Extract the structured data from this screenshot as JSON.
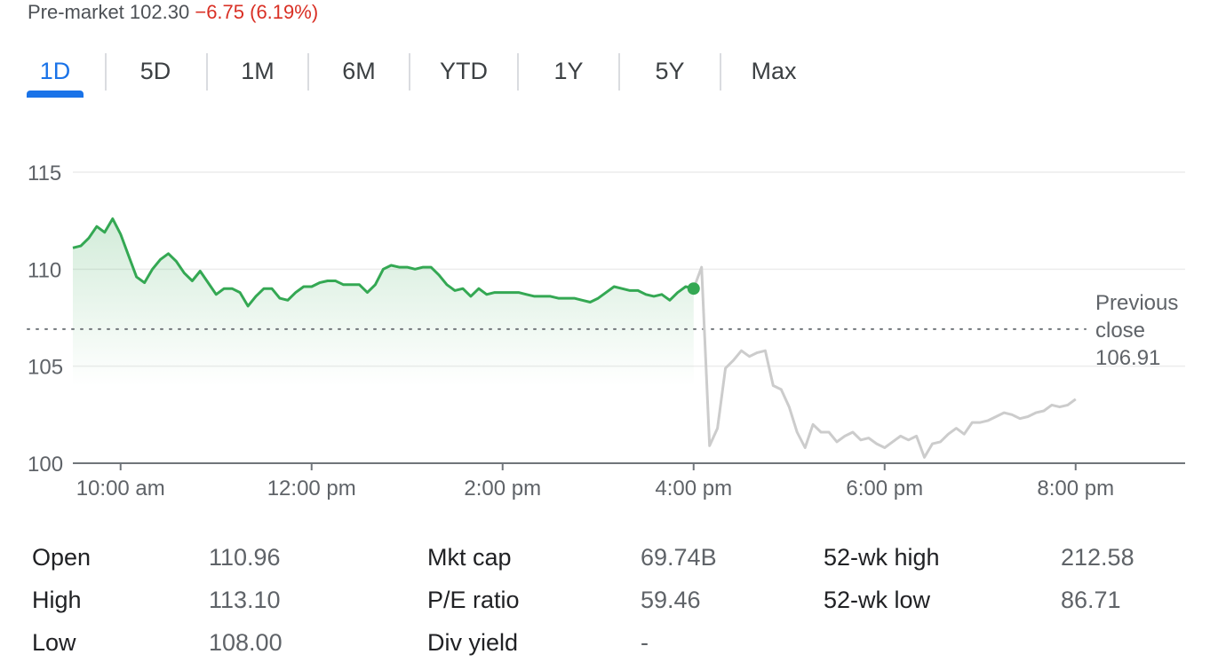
{
  "premarket": {
    "label": "Pre-market",
    "price": "102.30",
    "change": "−6.75 (6.19%)"
  },
  "tabs": [
    {
      "label": "1D",
      "active": true
    },
    {
      "label": "5D"
    },
    {
      "label": "1M"
    },
    {
      "label": "6M"
    },
    {
      "label": "YTD"
    },
    {
      "label": "1Y"
    },
    {
      "label": "5Y"
    },
    {
      "label": "Max"
    }
  ],
  "chart_data": {
    "type": "line",
    "y_ticks": [
      "115",
      "110",
      "105",
      "100"
    ],
    "ylim": [
      100,
      115
    ],
    "x_ticks": [
      "10:00 am",
      "12:00 pm",
      "2:00 pm",
      "4:00 pm",
      "6:00 pm",
      "8:00 pm"
    ],
    "previous_close": {
      "label_line1": "Previous",
      "label_line2": "close",
      "value": 106.91,
      "value_label": "106.91"
    },
    "colors": {
      "regular": "#34a853",
      "extended": "#cccccc",
      "grid": "#ececec",
      "axis": "#70757a"
    },
    "series": [
      {
        "session": "regular",
        "x": [
          "9:30",
          "9:35",
          "9:40",
          "9:45",
          "9:50",
          "9:55",
          "10:00",
          "10:05",
          "10:10",
          "10:15",
          "10:20",
          "10:25",
          "10:30",
          "10:35",
          "10:40",
          "10:45",
          "10:50",
          "10:55",
          "11:00",
          "11:05",
          "11:10",
          "11:15",
          "11:20",
          "11:25",
          "11:30",
          "11:35",
          "11:40",
          "11:45",
          "11:50",
          "11:55",
          "12:00",
          "12:05",
          "12:10",
          "12:15",
          "12:20",
          "12:25",
          "12:30",
          "12:35",
          "12:40",
          "12:45",
          "12:50",
          "12:55",
          "13:00",
          "13:05",
          "13:10",
          "13:15",
          "13:20",
          "13:25",
          "13:30",
          "13:35",
          "13:40",
          "13:45",
          "13:50",
          "13:55",
          "14:00",
          "14:05",
          "14:10",
          "14:15",
          "14:20",
          "14:25",
          "14:30",
          "14:35",
          "14:40",
          "14:45",
          "14:50",
          "14:55",
          "15:00",
          "15:05",
          "15:10",
          "15:15",
          "15:20",
          "15:25",
          "15:30",
          "15:35",
          "15:40",
          "15:45",
          "15:50",
          "15:55",
          "16:00"
        ],
        "y": [
          111.1,
          111.2,
          111.6,
          112.2,
          111.9,
          112.6,
          111.8,
          110.7,
          109.6,
          109.3,
          110.0,
          110.5,
          110.8,
          110.4,
          109.8,
          109.4,
          109.9,
          109.3,
          108.7,
          109.0,
          109.0,
          108.8,
          108.1,
          108.6,
          109.0,
          109.0,
          108.5,
          108.4,
          108.8,
          109.1,
          109.1,
          109.3,
          109.4,
          109.4,
          109.2,
          109.2,
          109.2,
          108.8,
          109.2,
          110.0,
          110.2,
          110.1,
          110.1,
          110.0,
          110.1,
          110.1,
          109.7,
          109.2,
          108.9,
          109.0,
          108.6,
          109.0,
          108.7,
          108.8,
          108.8,
          108.8,
          108.8,
          108.7,
          108.6,
          108.6,
          108.6,
          108.5,
          108.5,
          108.5,
          108.4,
          108.3,
          108.5,
          108.8,
          109.1,
          109.0,
          108.9,
          108.9,
          108.7,
          108.6,
          108.7,
          108.4,
          108.8,
          109.1,
          109.0
        ]
      },
      {
        "session": "extended",
        "x": [
          "16:00",
          "16:05",
          "16:10",
          "16:15",
          "16:20",
          "16:25",
          "16:30",
          "16:35",
          "16:40",
          "16:45",
          "16:50",
          "16:55",
          "17:00",
          "17:05",
          "17:10",
          "17:15",
          "17:20",
          "17:25",
          "17:30",
          "17:35",
          "17:40",
          "17:45",
          "17:50",
          "17:55",
          "18:00",
          "18:05",
          "18:10",
          "18:15",
          "18:20",
          "18:25",
          "18:30",
          "18:35",
          "18:40",
          "18:45",
          "18:50",
          "18:55",
          "19:00",
          "19:05",
          "19:10",
          "19:15",
          "19:20",
          "19:25",
          "19:30",
          "19:35",
          "19:40",
          "19:45",
          "19:50",
          "19:55",
          "20:00"
        ],
        "y": [
          109.0,
          110.1,
          100.9,
          101.8,
          104.9,
          105.3,
          105.8,
          105.5,
          105.7,
          105.8,
          104.0,
          103.8,
          102.9,
          101.6,
          100.8,
          102.0,
          101.6,
          101.6,
          101.1,
          101.4,
          101.6,
          101.2,
          101.3,
          101.0,
          100.8,
          101.1,
          101.4,
          101.2,
          101.4,
          100.3,
          101.0,
          101.1,
          101.5,
          101.8,
          101.5,
          102.1,
          102.1,
          102.2,
          102.4,
          102.6,
          102.5,
          102.3,
          102.4,
          102.6,
          102.7,
          103.0,
          102.9,
          103.0,
          103.3
        ]
      }
    ]
  },
  "stats": [
    [
      {
        "label": "Open",
        "value": "110.96"
      },
      {
        "label": "Mkt cap",
        "value": "69.74B"
      },
      {
        "label": "52-wk high",
        "value": "212.58"
      }
    ],
    [
      {
        "label": "High",
        "value": "113.10"
      },
      {
        "label": "P/E ratio",
        "value": "59.46"
      },
      {
        "label": "52-wk low",
        "value": "86.71"
      }
    ],
    [
      {
        "label": "Low",
        "value": "108.00"
      },
      {
        "label": "Div yield",
        "value": "-"
      }
    ]
  ]
}
